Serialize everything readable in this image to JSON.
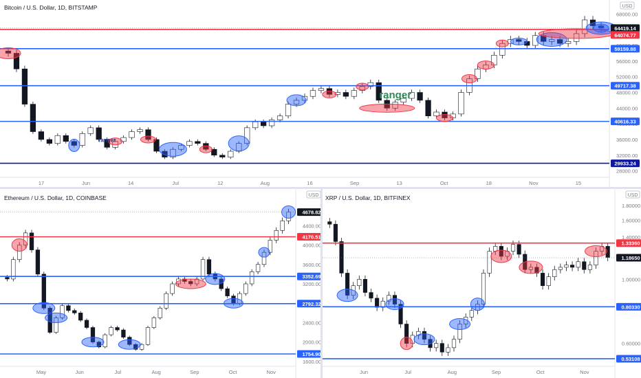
{
  "chart_data": [
    {
      "id": "btc",
      "type": "candlestick",
      "title": "Bitcoin / U.S. Dollar, 1D, BITSTAMP",
      "currency_badge": "USD",
      "y_scale": "linear",
      "ylim": [
        26000,
        70000
      ],
      "y_ticks": [
        28000,
        32000,
        36000,
        40000,
        44000,
        48000,
        52000,
        56000,
        60000,
        64000,
        68000
      ],
      "x_ticks": [
        "17",
        "Jun",
        "14",
        "Jul",
        "12",
        "Aug",
        "16",
        "Sep",
        "13",
        "Oct",
        "18",
        "Nov",
        "15"
      ],
      "price_labels": [
        {
          "text": "64419.14",
          "value": 64419.14,
          "style": "black"
        },
        {
          "text": "64074.77",
          "value": 64074.77,
          "style": "red"
        },
        {
          "text": "59159.88",
          "value": 59159.88,
          "style": "blue"
        },
        {
          "text": "49717.38",
          "value": 49717.38,
          "style": "blue"
        },
        {
          "text": "40616.33",
          "value": 40616.33,
          "style": "blue"
        },
        {
          "text": "29933.24",
          "value": 29933.24,
          "style": "navy"
        }
      ],
      "horizontal_lines": [
        {
          "value": 64074.77,
          "color": "#f23645"
        },
        {
          "value": 59159.88,
          "color": "#2962ff"
        },
        {
          "value": 49717.38,
          "color": "#2962ff"
        },
        {
          "value": 40616.33,
          "color": "#2962ff"
        },
        {
          "value": 29933.24,
          "color": "#0d19a3"
        }
      ],
      "annotations": [
        {
          "text": "ranger",
          "color": "#2e8b57",
          "size": "large"
        },
        {
          "text": "ranger",
          "color": "#1e3a8a",
          "size": "small"
        }
      ],
      "close_series": [
        58000,
        54000,
        45000,
        38000,
        36000,
        35000,
        37000,
        35500,
        34500,
        37500,
        39000,
        36000,
        34000,
        35500,
        36500,
        38000,
        38500,
        36000,
        33000,
        31500,
        33500,
        34500,
        35500,
        35000,
        33500,
        32000,
        31500,
        33000,
        35000,
        39000,
        40500,
        39500,
        41000,
        42000,
        45000,
        46000,
        47000,
        48500,
        49000,
        47500,
        48000,
        47000,
        48500,
        49500,
        50500,
        46000,
        44000,
        45500,
        46500,
        48000,
        46000,
        42000,
        43000,
        41500,
        42500,
        48000,
        51500,
        54000,
        55000,
        57500,
        60500,
        61500,
        61000,
        60000,
        62500,
        61000,
        61500,
        60500,
        61000,
        63000,
        66500,
        65000,
        64400
      ]
    },
    {
      "id": "eth",
      "type": "candlestick",
      "title": "Ethereum / U.S. Dollar, 1D, COINBASE",
      "currency_badge": "USD",
      "y_scale": "linear",
      "ylim": [
        1500,
        4900
      ],
      "y_ticks": [
        1600,
        2000,
        2400,
        2800,
        3200,
        3600,
        4000,
        4400
      ],
      "x_ticks": [
        "May",
        "Jun",
        "Jul",
        "Aug",
        "Sep",
        "Oct",
        "Nov"
      ],
      "price_labels": [
        {
          "text": "4678.82",
          "value": 4678.82,
          "style": "black"
        },
        {
          "text": "4170.51",
          "value": 4170.51,
          "style": "red"
        },
        {
          "text": "3352.69",
          "value": 3352.69,
          "style": "blue"
        },
        {
          "text": "2792.32",
          "value": 2792.32,
          "style": "blue"
        },
        {
          "text": "1754.90",
          "value": 1754.9,
          "style": "blue"
        }
      ],
      "horizontal_lines": [
        {
          "value": 4170.51,
          "color": "#f23645"
        },
        {
          "value": 3352.69,
          "color": "#2962ff"
        },
        {
          "value": 2792.32,
          "color": "#2962ff"
        },
        {
          "value": 1754.9,
          "color": "#2962ff"
        }
      ],
      "close_series": [
        3300,
        3700,
        4000,
        4250,
        3900,
        3400,
        2700,
        2200,
        2500,
        2750,
        2650,
        2600,
        2450,
        2300,
        2000,
        1900,
        2150,
        2300,
        2250,
        2100,
        1950,
        1850,
        1950,
        2300,
        2500,
        2700,
        3000,
        3200,
        3300,
        3250,
        3200,
        3300,
        3700,
        3400,
        3300,
        3100,
        2950,
        2800,
        3000,
        3200,
        3450,
        3600,
        3850,
        4100,
        4300,
        4500,
        4680
      ]
    },
    {
      "id": "xrp",
      "type": "candlestick",
      "title": "XRP / U.S. Dollar, 1D, BITFINEX",
      "currency_badge": "USD",
      "y_scale": "log",
      "ylim": [
        0.5,
        1.9
      ],
      "y_ticks": [
        0.6,
        0.8,
        1.0,
        1.2,
        1.4,
        1.6,
        1.8
      ],
      "y_tick_labels": [
        "0.60000",
        "0.80000",
        "1.00000",
        "1.20000",
        "1.40000",
        "1.60000",
        "1.80000"
      ],
      "x_ticks": [
        "Jun",
        "Jul",
        "Aug",
        "Sep",
        "Oct",
        "Nov"
      ],
      "price_labels": [
        {
          "text": "1.33360",
          "value": 1.3336,
          "style": "red"
        },
        {
          "text": "1.18650",
          "value": 1.1865,
          "style": "black"
        },
        {
          "text": "0.80330",
          "value": 0.8033,
          "style": "blue"
        },
        {
          "text": "0.53108",
          "value": 0.53108,
          "style": "blue"
        }
      ],
      "horizontal_lines": [
        {
          "value": 1.3336,
          "color": "#f23645"
        },
        {
          "value": 0.8033,
          "color": "#2962ff"
        },
        {
          "value": 0.53108,
          "color": "#2962ff"
        }
      ],
      "close_series": [
        1.55,
        1.35,
        1.05,
        0.88,
        0.95,
        1.0,
        0.9,
        0.86,
        0.8,
        0.84,
        0.88,
        0.82,
        0.7,
        0.6,
        0.64,
        0.66,
        0.62,
        0.58,
        0.6,
        0.56,
        0.58,
        0.62,
        0.7,
        0.74,
        0.78,
        0.82,
        1.05,
        1.25,
        1.3,
        1.2,
        1.25,
        1.32,
        1.22,
        1.08,
        1.1,
        1.05,
        0.95,
        1.02,
        1.08,
        1.1,
        1.12,
        1.1,
        1.15,
        1.08,
        1.12,
        1.25,
        1.3,
        1.19
      ]
    }
  ]
}
